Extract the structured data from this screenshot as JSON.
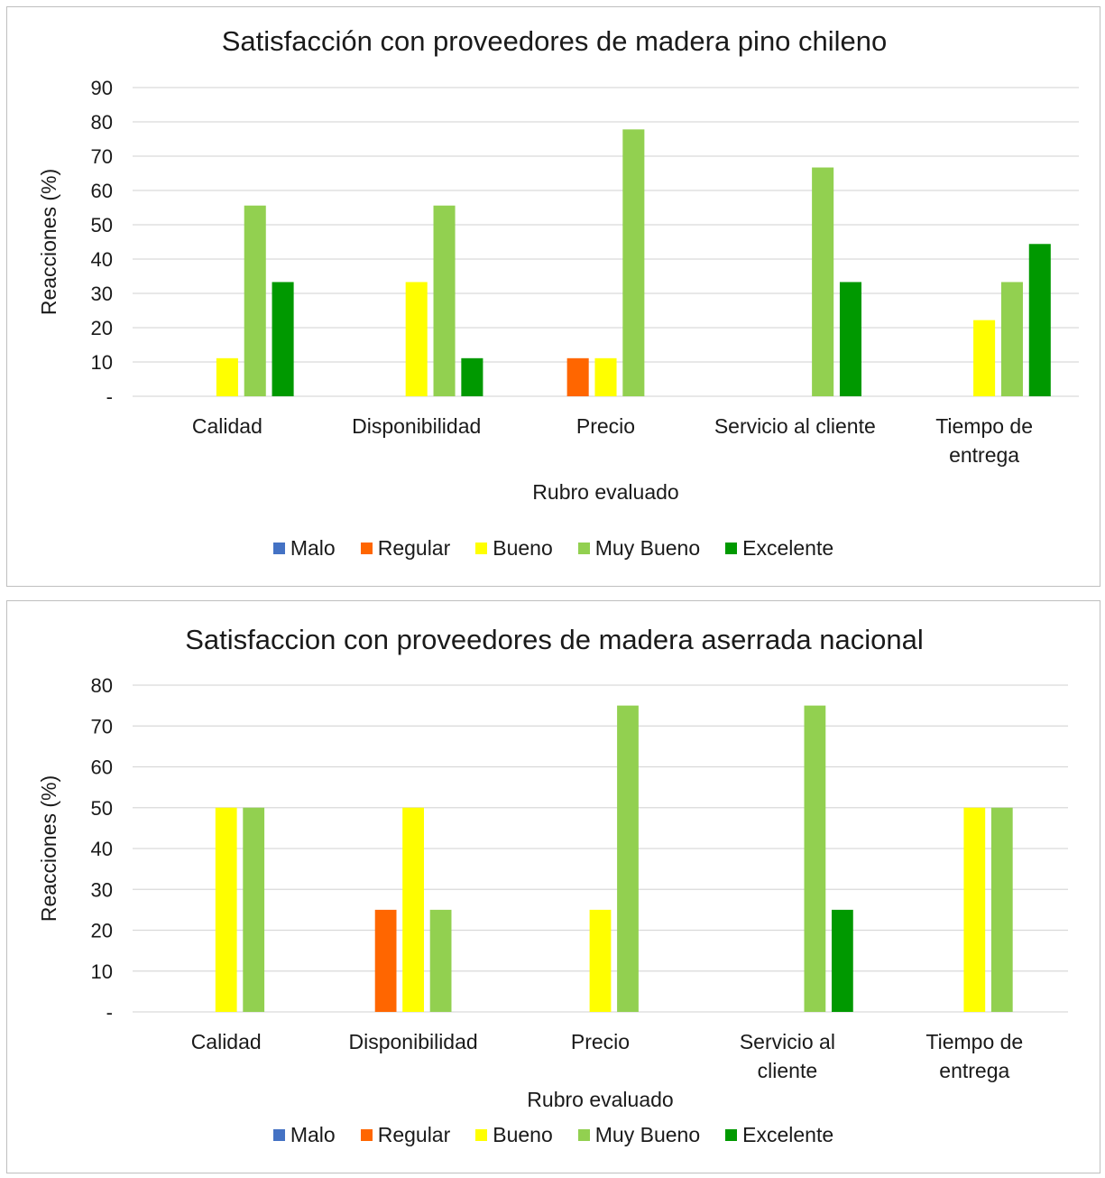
{
  "chart_data": [
    {
      "type": "bar",
      "title": "Satisfacción con proveedores de madera pino chileno",
      "xlabel": "Rubro evaluado",
      "ylabel": "Reacciones (%)",
      "ylim": [
        0,
        90
      ],
      "yticks": [
        "-",
        "10",
        "20",
        "30",
        "40",
        "50",
        "60",
        "70",
        "80",
        "90"
      ],
      "grid": true,
      "legend_position": "bottom",
      "categories": [
        [
          "Calidad"
        ],
        [
          "Disponibilidad"
        ],
        [
          "Precio"
        ],
        [
          "Servicio al cliente"
        ],
        [
          "Tiempo de",
          "entrega"
        ]
      ],
      "series": [
        {
          "name": "Malo",
          "color": "#4472c4",
          "values": [
            0,
            0,
            0,
            0,
            0
          ]
        },
        {
          "name": "Regular",
          "color": "#ff6600",
          "values": [
            0,
            0,
            11.1,
            0,
            0
          ]
        },
        {
          "name": "Bueno",
          "color": "#ffff00",
          "values": [
            11.1,
            33.3,
            11.1,
            0,
            22.2
          ]
        },
        {
          "name": "Muy Bueno",
          "color": "#92d050",
          "values": [
            55.6,
            55.6,
            77.8,
            66.7,
            33.3
          ]
        },
        {
          "name": "Excelente",
          "color": "#009900",
          "values": [
            33.3,
            11.1,
            0,
            33.3,
            44.4
          ]
        }
      ]
    },
    {
      "type": "bar",
      "title": "Satisfaccion con proveedores de madera aserrada nacional",
      "xlabel": "Rubro evaluado",
      "ylabel": "Reacciones (%)",
      "ylim": [
        0,
        80
      ],
      "yticks": [
        "-",
        "10",
        "20",
        "30",
        "40",
        "50",
        "60",
        "70",
        "80"
      ],
      "grid": true,
      "legend_position": "bottom",
      "categories": [
        [
          "Calidad"
        ],
        [
          "Disponibilidad"
        ],
        [
          "Precio"
        ],
        [
          "Servicio al",
          "cliente"
        ],
        [
          "Tiempo de",
          "entrega"
        ]
      ],
      "series": [
        {
          "name": "Malo",
          "color": "#4472c4",
          "values": [
            0,
            0,
            0,
            0,
            0
          ]
        },
        {
          "name": "Regular",
          "color": "#ff6600",
          "values": [
            0,
            25,
            0,
            0,
            0
          ]
        },
        {
          "name": "Bueno",
          "color": "#ffff00",
          "values": [
            50,
            50,
            25,
            0,
            50
          ]
        },
        {
          "name": "Muy Bueno",
          "color": "#92d050",
          "values": [
            50,
            25,
            75,
            75,
            50
          ]
        },
        {
          "name": "Excelente",
          "color": "#009900",
          "values": [
            0,
            0,
            0,
            25,
            0
          ]
        }
      ]
    }
  ]
}
